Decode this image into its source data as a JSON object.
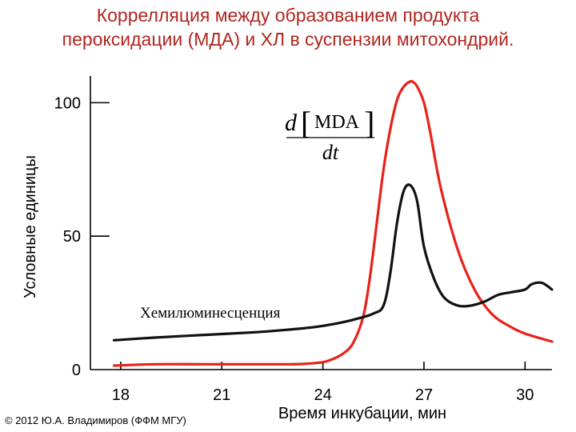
{
  "title": {
    "line1": "Коррелляция между образованием продукта",
    "line2": "пероксидации (МДА) и ХЛ в суспензии митохондрий."
  },
  "copyright": "© 2012 Ю.А. Владимиров (ФФМ МГУ)",
  "colors": {
    "title": "#b0261f",
    "mda": "#e8221a",
    "cl": "#111111"
  },
  "chart_data": {
    "type": "line",
    "title": "Коррелляция между образованием продукта пероксидации (МДА) и ХЛ в суспензии митохондрий.",
    "xlabel": "Время инкубации, мин",
    "ylabel": "Условные единицы",
    "xlim": [
      17.1,
      30.8
    ],
    "ylim": [
      0,
      110
    ],
    "x_ticks": [
      18,
      21,
      24,
      27,
      30
    ],
    "y_ticks": [
      0,
      50,
      100
    ],
    "grid": false,
    "annotations": {
      "mda_numerator_d": "d",
      "mda_numerator_label": "MDA",
      "mda_denominator": "dt",
      "cl_label": "Хемилюминесценция"
    },
    "series": [
      {
        "name": "d[MDA]/dt",
        "color": "#e8221a",
        "x": [
          17.8,
          19.0,
          20.5,
          22.0,
          23.0,
          23.5,
          24.0,
          24.3,
          24.6,
          24.9,
          25.2,
          25.4,
          25.6,
          25.8,
          26.0,
          26.2,
          26.4,
          26.6,
          26.7,
          26.8,
          27.0,
          27.2,
          27.5,
          28.0,
          28.5,
          29.0,
          29.5,
          30.0,
          30.8
        ],
        "y": [
          1.5,
          2.0,
          2.0,
          2.0,
          2.0,
          2.2,
          2.8,
          4.0,
          6.0,
          10.0,
          20.0,
          35.0,
          55.0,
          75.0,
          90.0,
          101.0,
          106.0,
          108.0,
          107.5,
          106.0,
          100.0,
          88.0,
          68.0,
          45.0,
          30.0,
          21.0,
          16.5,
          13.5,
          10.5
        ]
      },
      {
        "name": "Хемилюминесценция",
        "color": "#111111",
        "x": [
          17.8,
          19.0,
          20.5,
          22.0,
          23.0,
          23.8,
          24.5,
          25.0,
          25.5,
          25.8,
          26.0,
          26.2,
          26.4,
          26.6,
          26.8,
          27.0,
          27.3,
          27.6,
          28.0,
          28.4,
          28.8,
          29.2,
          29.6,
          30.0,
          30.2,
          30.5,
          30.8
        ],
        "y": [
          11.0,
          12.0,
          13.0,
          14.0,
          15.0,
          16.0,
          17.5,
          19.0,
          21.0,
          24.0,
          36.0,
          55.0,
          67.0,
          69.0,
          63.0,
          46.0,
          34.0,
          27.0,
          24.0,
          24.0,
          25.5,
          28.0,
          29.0,
          30.0,
          32.0,
          32.5,
          30.0
        ]
      }
    ]
  }
}
